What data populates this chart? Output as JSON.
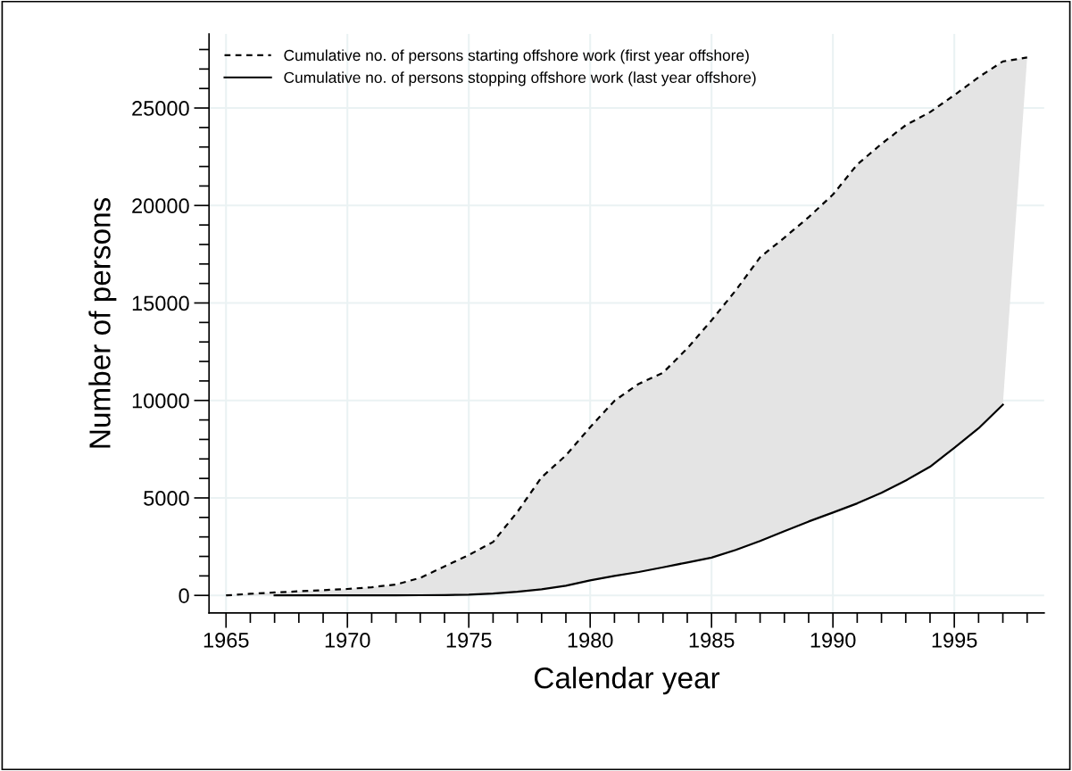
{
  "chart_data": {
    "type": "line",
    "xlabel": "Calendar year",
    "ylabel": "Number of persons",
    "x": [
      1965,
      1966,
      1967,
      1968,
      1969,
      1970,
      1971,
      1972,
      1973,
      1974,
      1975,
      1976,
      1977,
      1978,
      1979,
      1980,
      1981,
      1982,
      1983,
      1984,
      1985,
      1986,
      1987,
      1988,
      1989,
      1990,
      1991,
      1992,
      1993,
      1994,
      1995,
      1996,
      1997,
      1998
    ],
    "series": [
      {
        "name": "Cumulative no. of persons starting offshore work (first year offshore)",
        "color": "#000000",
        "line_style": "dashed",
        "values": [
          0,
          80,
          150,
          210,
          270,
          330,
          420,
          560,
          900,
          1490,
          2070,
          2740,
          4280,
          6060,
          7180,
          8630,
          9980,
          10850,
          11420,
          12670,
          14110,
          15650,
          17340,
          18350,
          19400,
          20560,
          22100,
          23160,
          24120,
          24790,
          25660,
          26580,
          27390,
          27590
        ],
        "upper": [
          0,
          80,
          150,
          210,
          270,
          330,
          420,
          560,
          900,
          1490,
          2070,
          2740,
          4280,
          6060,
          7180,
          8630,
          9980,
          10850,
          11420,
          12670,
          14110,
          15650,
          17340,
          18350,
          19400,
          20560,
          22100,
          23160,
          24120,
          24790,
          25660,
          26580,
          27390,
          27590
        ],
        "lower": [
          0,
          0,
          0,
          0,
          0,
          0,
          0,
          0,
          10,
          20,
          40,
          100,
          190,
          310,
          500,
          770,
          1000,
          1200,
          1440,
          1690,
          1940,
          2330,
          2790,
          3290,
          3790,
          4250,
          4720,
          5260,
          5890,
          6600,
          7570,
          8570,
          9780,
          27590
        ]
      },
      {
        "name": "Cumulative no. of persons stopping offshore work (last year offshore)",
        "color": "#000000",
        "line_style": "solid",
        "x": [
          1967,
          1968,
          1969,
          1970,
          1971,
          1972,
          1973,
          1974,
          1975,
          1976,
          1977,
          1978,
          1979,
          1980,
          1981,
          1982,
          1983,
          1984,
          1985,
          1986,
          1987,
          1988,
          1989,
          1990,
          1991,
          1992,
          1993,
          1994,
          1995,
          1996,
          1997
        ],
        "values": [
          0,
          0,
          0,
          0,
          0,
          0,
          10,
          20,
          40,
          100,
          190,
          310,
          500,
          770,
          1000,
          1200,
          1440,
          1690,
          1940,
          2330,
          2790,
          3290,
          3790,
          4250,
          4720,
          5260,
          5890,
          6600,
          7570,
          8570,
          9780
        ]
      }
    ],
    "xlim": [
      1964.3,
      1998.7
    ],
    "ylim": [
      -900,
      28800
    ],
    "xticks": [
      1965,
      {
        "value": 1966,
        "label": null
      },
      {
        "value": 1967,
        "label": null
      },
      {
        "value": 1968,
        "label": null
      },
      {
        "value": 1969,
        "label": null
      },
      1970,
      {
        "value": 1971,
        "label": null
      },
      {
        "value": 1972,
        "label": null
      },
      {
        "value": 1973,
        "label": null
      },
      {
        "value": 1974,
        "label": null
      },
      1975,
      {
        "value": 1976,
        "label": null
      },
      {
        "value": 1977,
        "label": null
      },
      {
        "value": 1978,
        "label": null
      },
      {
        "value": 1979,
        "label": null
      },
      1980,
      {
        "value": 1981,
        "label": null
      },
      {
        "value": 1982,
        "label": null
      },
      {
        "value": 1983,
        "label": null
      },
      {
        "value": 1984,
        "label": null
      },
      1985,
      {
        "value": 1986,
        "label": null
      },
      {
        "value": 1987,
        "label": null
      },
      {
        "value": 1988,
        "label": null
      },
      {
        "value": 1989,
        "label": null
      },
      1990,
      {
        "value": 1991,
        "label": null
      },
      {
        "value": 1992,
        "label": null
      },
      {
        "value": 1993,
        "label": null
      },
      {
        "value": 1994,
        "label": null
      },
      1995,
      {
        "value": 1996,
        "label": null
      },
      {
        "value": 1997,
        "label": null
      },
      {
        "value": 1998,
        "label": null
      }
    ],
    "yticks": [
      0,
      {
        "value": 1000,
        "label": null
      },
      {
        "value": 2000,
        "label": null
      },
      {
        "value": 3000,
        "label": null
      },
      {
        "value": 4000,
        "label": null
      },
      5000,
      {
        "value": 6000,
        "label": null
      },
      {
        "value": 7000,
        "label": null
      },
      {
        "value": 8000,
        "label": null
      },
      {
        "value": 9000,
        "label": null
      },
      10000,
      {
        "value": 11000,
        "label": null
      },
      {
        "value": 12000,
        "label": null
      },
      {
        "value": 13000,
        "label": null
      },
      {
        "value": 14000,
        "label": null
      },
      15000,
      {
        "value": 16000,
        "label": null
      },
      {
        "value": 17000,
        "label": null
      },
      {
        "value": 18000,
        "label": null
      },
      {
        "value": 19000,
        "label": null
      },
      20000,
      {
        "value": 21000,
        "label": null
      },
      {
        "value": 22000,
        "label": null
      },
      {
        "value": 23000,
        "label": null
      },
      {
        "value": 24000,
        "label": null
      },
      25000,
      {
        "value": 26000,
        "label": null
      },
      {
        "value": 27000,
        "label": null
      },
      {
        "value": 28000,
        "label": null
      }
    ],
    "grid": true,
    "legend": "top left",
    "marker": "none"
  }
}
